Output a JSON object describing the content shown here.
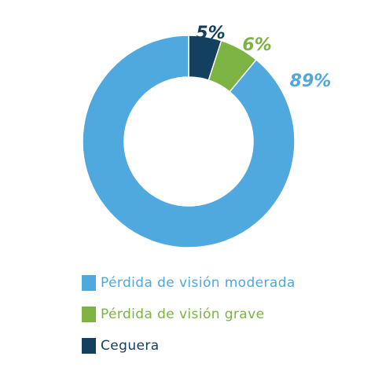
{
  "chart_data": {
    "type": "pie",
    "variant": "donut",
    "categories": [
      "Pérdida de visión moderada",
      "Pérdida de visión grave",
      "Ceguera"
    ],
    "values": [
      89,
      6,
      5
    ],
    "value_labels": [
      "89%",
      "6%",
      "5%"
    ],
    "colors": [
      "#4fa8de",
      "#7cb342",
      "#12405e"
    ],
    "legend_placement": "bottom-left",
    "title": ""
  },
  "legend": {
    "items": [
      {
        "label": "Pérdida de visión moderada",
        "color": "#4fa8de"
      },
      {
        "label": "Pérdida de visión grave",
        "color": "#7cb342"
      },
      {
        "label": "Ceguera",
        "color": "#12405e"
      }
    ]
  }
}
